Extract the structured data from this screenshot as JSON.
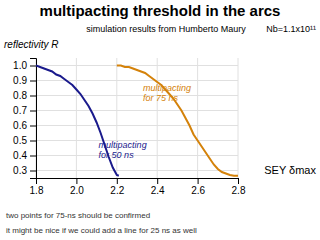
{
  "chart_data": {
    "type": "line",
    "title": "multipacting threshold in the arcs",
    "subtitle": "simulation results from Humberto Maury",
    "note": "Nb=1.1x10¹¹",
    "xlabel": "SEY δmax",
    "ylabel": "reflectivity R",
    "xlim": [
      1.8,
      2.8
    ],
    "ylim": [
      0.25,
      1.05
    ],
    "xticks": [
      1.8,
      {
        "value": 2.0,
        "label": "2.0"
      },
      2.2,
      2.4,
      2.6,
      2.8
    ],
    "yticks": [
      0.3,
      0.4,
      0.5,
      0.6,
      0.7,
      0.8,
      0.9,
      {
        "value": 1.0,
        "label": "1.0"
      }
    ],
    "grid": true,
    "series": [
      {
        "color": "#1a1a8c",
        "x": [
          1.8,
          1.82,
          1.84,
          1.86,
          1.88,
          1.9,
          1.92,
          1.94,
          1.96,
          1.98,
          2.0,
          2.02,
          2.04,
          2.06,
          2.08,
          2.1,
          2.12,
          2.14,
          2.16,
          2.18,
          2.2,
          2.21
        ],
        "values": [
          1.0,
          0.99,
          0.98,
          0.97,
          0.96,
          0.94,
          0.93,
          0.91,
          0.89,
          0.87,
          0.84,
          0.81,
          0.77,
          0.73,
          0.68,
          0.62,
          0.55,
          0.47,
          0.39,
          0.32,
          0.27,
          0.265
        ]
      },
      {
        "color": "#d4820a",
        "x": [
          2.2,
          2.22,
          2.24,
          2.26,
          2.28,
          2.3,
          2.32,
          2.34,
          2.36,
          2.38,
          2.4,
          2.42,
          2.44,
          2.46,
          2.48,
          2.5,
          2.52,
          2.54,
          2.56,
          2.58,
          2.6,
          2.62,
          2.64,
          2.66,
          2.68,
          2.7,
          2.72,
          2.74,
          2.76,
          2.78,
          2.8
        ],
        "values": [
          1.0,
          1.0,
          0.99,
          0.99,
          0.98,
          0.97,
          0.96,
          0.95,
          0.93,
          0.91,
          0.89,
          0.87,
          0.84,
          0.81,
          0.78,
          0.74,
          0.7,
          0.65,
          0.6,
          0.54,
          0.5,
          0.46,
          0.42,
          0.38,
          0.34,
          0.31,
          0.29,
          0.28,
          0.27,
          0.265,
          0.265
        ]
      }
    ],
    "annotations": [
      {
        "text": "multipacting\nfor 50 ns",
        "x": 2.11,
        "y": 0.44,
        "color": "#1a1a8c"
      },
      {
        "text": "multipacting\nfor 75 ns",
        "x": 2.33,
        "y": 0.82,
        "color": "#d4820a"
      }
    ],
    "footnotes": [
      "two points for 75-ns should be confirmed",
      "it might be nice if we could add a line for 25 ns as well"
    ]
  }
}
